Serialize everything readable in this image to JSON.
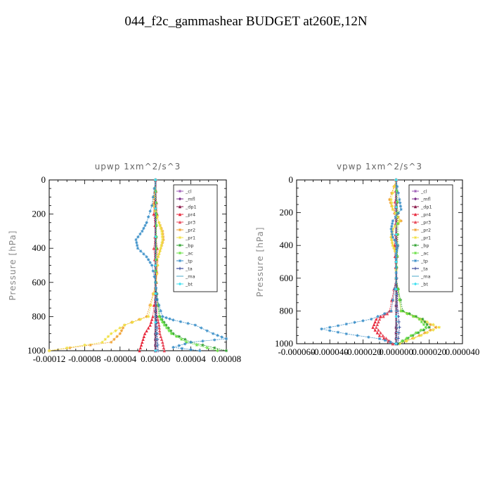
{
  "figure_title": "044_f2c_gammashear  BUDGET at260E,12N",
  "legend_entries": [
    "_cl",
    "_mfl",
    "_dp1",
    "_pr4",
    "_pr3",
    "_pr2",
    "_pr1",
    "_bp",
    "_ac",
    "_tp",
    "_ta",
    "_ma",
    "_bt"
  ],
  "legend_colors": [
    "#9b59b6",
    "#7b2d8b",
    "#8b1a4a",
    "#e8283c",
    "#e8495a",
    "#f0a030",
    "#f0e040",
    "#2ca02c",
    "#66e040",
    "#3a8fc8",
    "#1a2a8a",
    "#4aa8c8",
    "#40e0f0"
  ],
  "chart_data": [
    {
      "type": "line",
      "title": "upwp  1xm^2/s^3",
      "ylabel": "Pressure [hPa]",
      "xlim": [
        -0.00012,
        8e-05
      ],
      "ylim": [
        1000,
        0
      ],
      "xticks": [
        -0.00012,
        -8e-05,
        -4e-05,
        0.0,
        4e-05,
        8e-05
      ],
      "xtick_labels": [
        "-0.00012",
        "-0.00008",
        "-0.00004",
        "0.00000",
        "0.00004",
        "0.00008"
      ],
      "yticks": [
        0,
        200,
        400,
        600,
        800,
        1000
      ],
      "ytick_labels": [
        "0",
        "200",
        "400",
        "600",
        "800",
        "1000"
      ],
      "series": [
        {
          "name": "_cl",
          "p": [
            0,
            500,
            900,
            1000
          ],
          "values": [
            0,
            0,
            0,
            0
          ]
        },
        {
          "name": "_mfl",
          "p": [
            0,
            500,
            900,
            1000
          ],
          "values": [
            0,
            0,
            0,
            0
          ]
        },
        {
          "name": "_dp1",
          "p": [
            0,
            500,
            900,
            1000
          ],
          "values": [
            0,
            0,
            0,
            0
          ]
        },
        {
          "name": "_pr4",
          "p": [
            0,
            200,
            400,
            600,
            800,
            850,
            900,
            950,
            1000
          ],
          "values": [
            0,
            -2e-06,
            2e-06,
            1e-06,
            -3e-06,
            -6e-06,
            -1.2e-05,
            -1.5e-05,
            -1.8e-05
          ]
        },
        {
          "name": "_pr3",
          "p": [
            0,
            200,
            400,
            600,
            800,
            850,
            900,
            950,
            1000
          ],
          "values": [
            0,
            2e-06,
            -2e-06,
            1e-06,
            2e-06,
            4e-06,
            5e-06,
            8e-06,
            1e-05
          ]
        },
        {
          "name": "_pr2",
          "p": [
            0,
            150,
            250,
            300,
            350,
            400,
            450,
            600,
            800,
            850,
            900,
            950,
            1000
          ],
          "values": [
            0,
            -3e-06,
            4e-06,
            8e-06,
            9e-06,
            6e-06,
            3e-06,
            1e-06,
            -1e-05,
            -3.5e-05,
            -4e-05,
            -5e-05,
            -0.00012
          ]
        },
        {
          "name": "_pr1",
          "p": [
            0,
            150,
            250,
            300,
            350,
            400,
            450,
            600,
            800,
            850,
            900,
            950,
            1000
          ],
          "values": [
            0,
            -2e-06,
            4e-06,
            7e-06,
            8e-06,
            6e-06,
            3e-06,
            1e-06,
            -8e-06,
            -3.5e-05,
            -5e-05,
            -6e-05,
            -0.00012
          ]
        },
        {
          "name": "_bp",
          "p": [
            0,
            200,
            400,
            600,
            800,
            850,
            900,
            950,
            1000
          ],
          "values": [
            0,
            1e-06,
            1e-06,
            0.0,
            5e-06,
            1.2e-05,
            2e-05,
            4e-05,
            8e-05
          ]
        },
        {
          "name": "_ac",
          "p": [
            0,
            200,
            400,
            600,
            800,
            850,
            900,
            950,
            1000
          ],
          "values": [
            0,
            1e-06,
            1e-06,
            0.0,
            4e-06,
            1e-05,
            1.8e-05,
            3.5e-05,
            7e-05
          ]
        },
        {
          "name": "_tp",
          "p": [
            0,
            150,
            250,
            300,
            350,
            400,
            450,
            500,
            600,
            700,
            800,
            820,
            850,
            900,
            930,
            950,
            980,
            1000
          ],
          "values": [
            0,
            -4e-06,
            -1e-05,
            -1.5e-05,
            -2.2e-05,
            -2e-05,
            -1e-05,
            -4e-06,
            0.0,
            2e-06,
            8e-06,
            2e-05,
            4.5e-05,
            6.5e-05,
            8e-05,
            4e-05,
            2e-05,
            5e-05
          ]
        },
        {
          "name": "_ta",
          "p": [
            0,
            500,
            800,
            900,
            1000
          ],
          "values": [
            0,
            0.0,
            1e-06,
            2e-06,
            3e-06
          ]
        },
        {
          "name": "_ma",
          "p": [
            0,
            500,
            800,
            900,
            1000
          ],
          "values": [
            0,
            0.0,
            0.0,
            1e-06,
            2e-06
          ]
        },
        {
          "name": "_bt",
          "p": [
            0,
            500,
            1000
          ],
          "values": [
            0,
            0,
            0
          ]
        }
      ]
    },
    {
      "type": "line",
      "title": "vpwp  1xm^2/s^3",
      "ylabel": "Pressure [hPa]",
      "xlim": [
        -6e-05,
        4e-05
      ],
      "ylim": [
        1000,
        0
      ],
      "xticks": [
        -6e-05,
        -4e-05,
        -2e-05,
        0.0,
        2e-05,
        4e-05
      ],
      "xtick_labels": [
        "-0.000060",
        "-0.000040",
        "-0.000020",
        "0.000000",
        "0.000020",
        "0.000040"
      ],
      "yticks": [
        0,
        200,
        400,
        600,
        800,
        1000
      ],
      "ytick_labels": [
        "0",
        "200",
        "400",
        "600",
        "800",
        "1000"
      ],
      "series": [
        {
          "name": "_cl",
          "p": [
            0,
            500,
            900,
            1000
          ],
          "values": [
            0,
            0,
            0,
            0
          ]
        },
        {
          "name": "_mfl",
          "p": [
            0,
            500,
            900,
            1000
          ],
          "values": [
            0,
            0,
            0,
            0
          ]
        },
        {
          "name": "_dp1",
          "p": [
            0,
            500,
            900,
            1000
          ],
          "values": [
            0,
            0,
            0,
            0
          ]
        },
        {
          "name": "_pr4",
          "p": [
            0,
            200,
            400,
            600,
            800,
            850,
            900,
            950,
            1000
          ],
          "values": [
            0,
            1e-06,
            -1e-06,
            0.0,
            -4e-06,
            -1.2e-05,
            -1.4e-05,
            -1e-05,
            -2e-06
          ]
        },
        {
          "name": "_pr3",
          "p": [
            0,
            200,
            400,
            600,
            800,
            850,
            900,
            950,
            1000
          ],
          "values": [
            0,
            -1e-06,
            1e-06,
            0.0,
            -3e-06,
            -1e-05,
            -1.2e-05,
            -8e-06,
            -2e-06
          ]
        },
        {
          "name": "_pr2",
          "p": [
            0,
            120,
            180,
            250,
            300,
            350,
            400,
            450,
            600,
            800,
            850,
            900,
            950,
            1000
          ],
          "values": [
            0,
            -4e-06,
            -2e-06,
            3e-06,
            -2e-06,
            -3e-06,
            -2e-06,
            0.0,
            0.0,
            3e-06,
            1.4e-05,
            2.4e-05,
            1.4e-05,
            2e-06
          ]
        },
        {
          "name": "_pr1",
          "p": [
            0,
            120,
            180,
            250,
            300,
            350,
            400,
            450,
            600,
            800,
            850,
            900,
            950,
            1000
          ],
          "values": [
            0,
            -3e-06,
            -2e-06,
            2e-06,
            -2e-06,
            -3e-06,
            -2e-06,
            0.0,
            0.0,
            3e-06,
            1.5e-05,
            2.6e-05,
            1.5e-05,
            2e-06
          ]
        },
        {
          "name": "_bp",
          "p": [
            0,
            200,
            400,
            600,
            800,
            850,
            900,
            950,
            1000
          ],
          "values": [
            0,
            1e-06,
            1e-06,
            0.0,
            4e-06,
            1.6e-05,
            2e-05,
            1e-05,
            1e-06
          ]
        },
        {
          "name": "_ac",
          "p": [
            0,
            200,
            400,
            600,
            800,
            850,
            900,
            950,
            1000
          ],
          "values": [
            0,
            1e-06,
            1e-06,
            0.0,
            3e-06,
            1.4e-05,
            1.8e-05,
            9e-06,
            1e-06
          ]
        },
        {
          "name": "_tp",
          "p": [
            0,
            120,
            180,
            250,
            300,
            350,
            400,
            450,
            500,
            600,
            800,
            850,
            880,
            910,
            940,
            970,
            1000
          ],
          "values": [
            0,
            2e-06,
            3e-06,
            -2e-06,
            -3e-06,
            -2e-06,
            1e-06,
            0.0,
            0.0,
            0.0,
            -3e-06,
            -1.5e-05,
            -3e-05,
            -4.5e-05,
            -3e-05,
            -1e-05,
            0.0
          ]
        },
        {
          "name": "_ta",
          "p": [
            0,
            500,
            800,
            900,
            1000
          ],
          "values": [
            0,
            0.0,
            1e-06,
            2e-06,
            1e-06
          ]
        },
        {
          "name": "_ma",
          "p": [
            0,
            500,
            800,
            900,
            1000
          ],
          "values": [
            0,
            0.0,
            0.0,
            1e-06,
            0.0
          ]
        },
        {
          "name": "_bt",
          "p": [
            0,
            500,
            1000
          ],
          "values": [
            0,
            0,
            0
          ]
        }
      ]
    }
  ]
}
